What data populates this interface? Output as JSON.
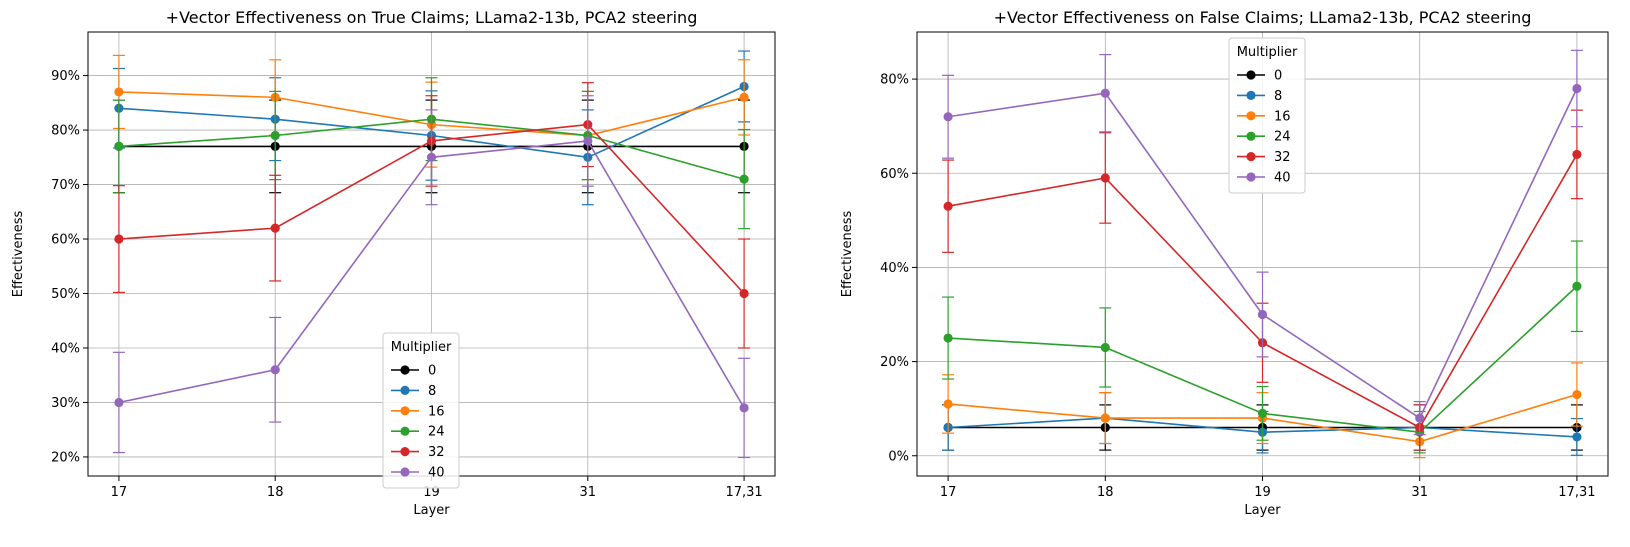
{
  "chart_data": [
    {
      "type": "line",
      "title": "+Vector Effectiveness on True Claims; LLama2-13b, PCA2 steering",
      "xlabel": "Layer",
      "ylabel": "Effectiveness",
      "categories": [
        "17",
        "18",
        "19",
        "31",
        "17,31"
      ],
      "ylim": [
        16.5,
        98
      ],
      "yticks": [
        20,
        30,
        40,
        50,
        60,
        70,
        80,
        90
      ],
      "ytick_labels": [
        "20%",
        "30%",
        "40%",
        "50%",
        "60%",
        "70%",
        "80%",
        "90%"
      ],
      "grid": true,
      "legend": {
        "title": "Multiplier",
        "placement": "bottom-center"
      },
      "series": [
        {
          "name": "0",
          "color": "#000000",
          "values": [
            77,
            77,
            77,
            77,
            77
          ],
          "err": [
            8.5,
            8.5,
            8.5,
            8.5,
            8.5
          ]
        },
        {
          "name": "8",
          "color": "#1f77b4",
          "values": [
            84,
            82,
            79,
            75,
            88
          ],
          "err": [
            7.3,
            7.6,
            8.2,
            8.7,
            6.5
          ]
        },
        {
          "name": "16",
          "color": "#ff7f0e",
          "values": [
            87,
            86,
            81,
            79,
            86
          ],
          "err": [
            6.7,
            6.9,
            7.8,
            8.1,
            6.9
          ]
        },
        {
          "name": "24",
          "color": "#2ca02c",
          "values": [
            77,
            79,
            82,
            79,
            71
          ],
          "err": [
            8.5,
            8.1,
            7.6,
            8.1,
            9.1
          ]
        },
        {
          "name": "32",
          "color": "#d62728",
          "values": [
            60,
            62,
            78,
            81,
            50
          ],
          "err": [
            9.8,
            9.7,
            8.3,
            7.7,
            10
          ]
        },
        {
          "name": "40",
          "color": "#9467bd",
          "values": [
            30,
            36,
            75,
            78,
            29
          ],
          "err": [
            9.2,
            9.6,
            8.7,
            8.3,
            9.1
          ]
        }
      ]
    },
    {
      "type": "line",
      "title": "+Vector Effectiveness on False Claims; LLama2-13b, PCA2 steering",
      "xlabel": "Layer",
      "ylabel": "Effectiveness",
      "categories": [
        "17",
        "18",
        "19",
        "31",
        "17,31"
      ],
      "ylim": [
        -4.3,
        90
      ],
      "yticks": [
        0,
        20,
        40,
        60,
        80
      ],
      "ytick_labels": [
        "0%",
        "20%",
        "40%",
        "60%",
        "80%"
      ],
      "grid": true,
      "legend": {
        "title": "Multiplier",
        "placement": "upper-center"
      },
      "series": [
        {
          "name": "0",
          "color": "#000000",
          "values": [
            6,
            6,
            6,
            6,
            6
          ],
          "err": [
            4.8,
            4.8,
            4.8,
            4.8,
            4.8
          ]
        },
        {
          "name": "8",
          "color": "#1f77b4",
          "values": [
            6,
            8,
            5,
            6,
            4
          ],
          "err": [
            4.8,
            5.4,
            4.4,
            4.8,
            3.9
          ]
        },
        {
          "name": "16",
          "color": "#ff7f0e",
          "values": [
            11,
            8,
            8,
            3,
            13
          ],
          "err": [
            6.2,
            5.4,
            5.4,
            3.4,
            6.7
          ]
        },
        {
          "name": "24",
          "color": "#2ca02c",
          "values": [
            25,
            23,
            9,
            5,
            36
          ],
          "err": [
            8.7,
            8.4,
            5.7,
            4.4,
            9.6
          ]
        },
        {
          "name": "32",
          "color": "#d62728",
          "values": [
            53,
            59,
            24,
            6,
            64
          ],
          "err": [
            9.8,
            9.6,
            8.4,
            4.8,
            9.4
          ]
        },
        {
          "name": "40",
          "color": "#9467bd",
          "values": [
            72,
            77,
            30,
            8,
            78
          ],
          "err": [
            8.8,
            8.2,
            9,
            3.5,
            8.1
          ]
        }
      ]
    }
  ]
}
